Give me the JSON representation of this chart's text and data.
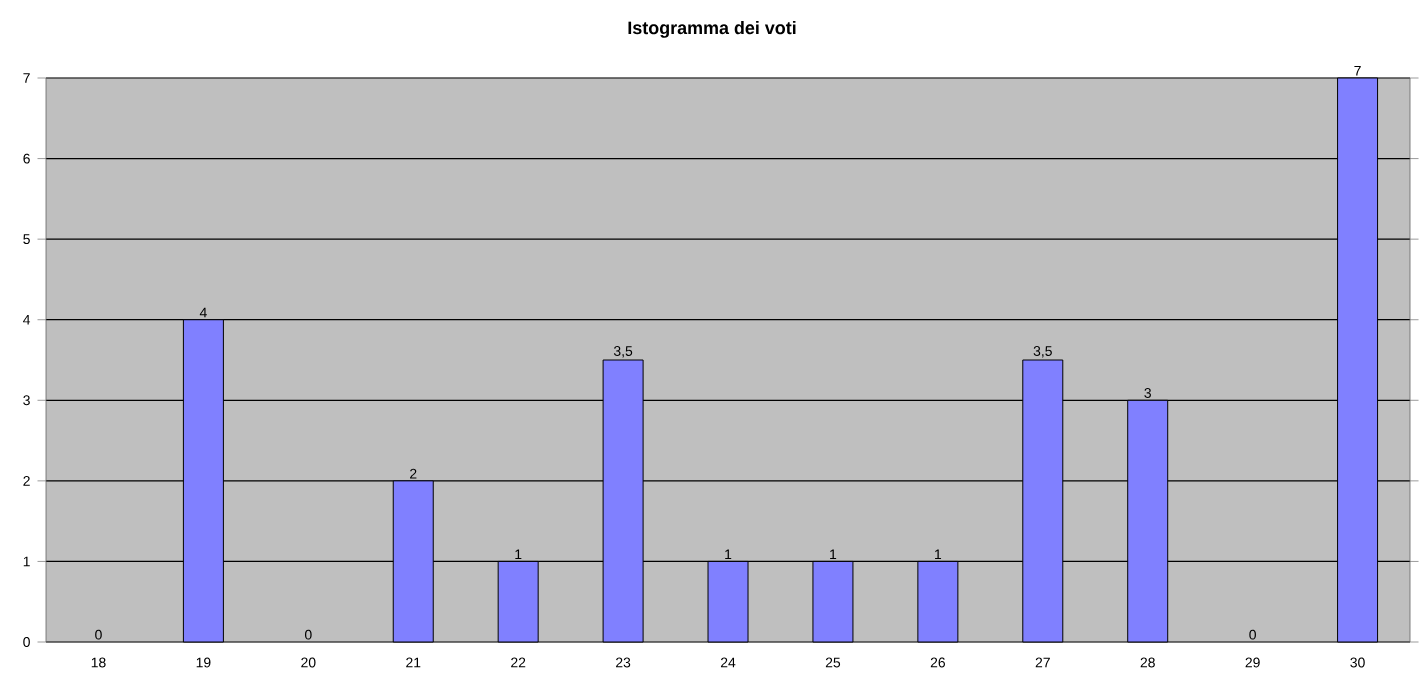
{
  "chart_data": {
    "type": "bar",
    "title": "Istogramma dei voti",
    "categories": [
      "18",
      "19",
      "20",
      "21",
      "22",
      "23",
      "24",
      "25",
      "26",
      "27",
      "28",
      "29",
      "30"
    ],
    "values": [
      0,
      4,
      0,
      2,
      1,
      3.5,
      1,
      1,
      1,
      3.5,
      3,
      0,
      7
    ],
    "value_labels": [
      "0",
      "4",
      "0",
      "2",
      "1",
      "3,5",
      "1",
      "1",
      "1",
      "3,5",
      "3",
      "0",
      "7"
    ],
    "color": "#8080ff",
    "ylim": [
      0,
      7
    ],
    "yticks": [
      0,
      1,
      2,
      3,
      4,
      5,
      6,
      7
    ],
    "grid": "y"
  }
}
